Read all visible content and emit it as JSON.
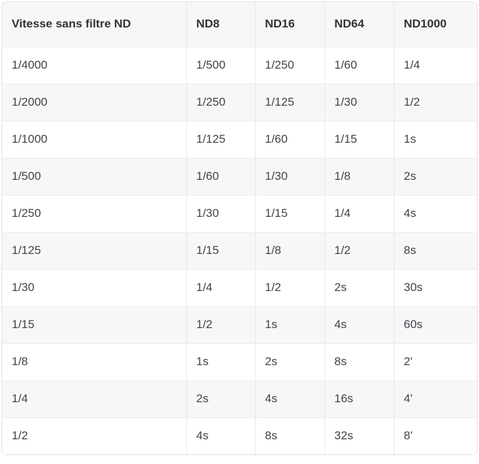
{
  "table": {
    "columns": [
      "Vitesse sans filtre ND",
      "ND8",
      "ND16",
      "ND64",
      "ND1000"
    ],
    "rows": [
      [
        "1/4000",
        "1/500",
        "1/250",
        "1/60",
        "1/4"
      ],
      [
        "1/2000",
        "1/250",
        "1/125",
        "1/30",
        "1/2"
      ],
      [
        "1/1000",
        "1/125",
        "1/60",
        "1/15",
        "1s"
      ],
      [
        "1/500",
        "1/60",
        "1/30",
        "1/8",
        "2s"
      ],
      [
        "1/250",
        "1/30",
        "1/15",
        "1/4",
        "4s"
      ],
      [
        "1/125",
        "1/15",
        "1/8",
        "1/2",
        "8s"
      ],
      [
        "1/30",
        "1/4",
        "1/2",
        "2s",
        "30s"
      ],
      [
        "1/15",
        "1/2",
        "1s",
        "4s",
        "60s"
      ],
      [
        "1/8",
        "1s",
        "2s",
        "8s",
        "2'"
      ],
      [
        "1/4",
        "2s",
        "4s",
        "16s",
        "4'"
      ],
      [
        "1/2",
        "4s",
        "8s",
        "32s",
        "8'"
      ]
    ]
  },
  "colors": {
    "header_background": "#f7f7f8",
    "stripe_background": "#f7f7f8",
    "row_background": "#ffffff",
    "border": "#e2e2e2",
    "inner_border": "#ececec",
    "header_text": "#2f3437",
    "cell_text": "#3f4449"
  }
}
